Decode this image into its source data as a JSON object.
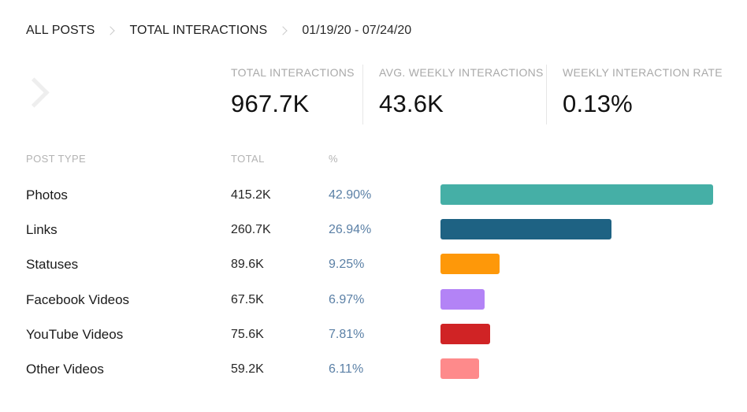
{
  "breadcrumb": {
    "all_posts": "ALL POSTS",
    "total_interactions": "TOTAL INTERACTIONS",
    "date_range": "01/19/20 - 07/24/20"
  },
  "stats": [
    {
      "label": "TOTAL INTERACTIONS",
      "value": "967.7K"
    },
    {
      "label": "AVG. WEEKLY INTERACTIONS",
      "value": "43.6K"
    },
    {
      "label": "WEEKLY INTERACTION RATE",
      "value": "0.13%"
    }
  ],
  "table": {
    "headers": {
      "type": "POST TYPE",
      "total": "TOTAL",
      "percent": "%"
    },
    "rows": [
      {
        "name": "Photos",
        "total": "415.2K",
        "percent": "42.90%",
        "pct_value": 42.9,
        "color": "#45afa6"
      },
      {
        "name": "Links",
        "total": "260.7K",
        "percent": "26.94%",
        "pct_value": 26.94,
        "color": "#1e6283"
      },
      {
        "name": "Statuses",
        "total": "89.6K",
        "percent": "9.25%",
        "pct_value": 9.25,
        "color": "#fe9809"
      },
      {
        "name": "Facebook Videos",
        "total": "67.5K",
        "percent": "6.97%",
        "pct_value": 6.97,
        "color": "#b383f6"
      },
      {
        "name": "YouTube Videos",
        "total": "75.6K",
        "percent": "7.81%",
        "pct_value": 7.81,
        "color": "#d02325"
      },
      {
        "name": "Other Videos",
        "total": "59.2K",
        "percent": "6.11%",
        "pct_value": 6.11,
        "color": "#fe8a8b"
      }
    ]
  }
}
